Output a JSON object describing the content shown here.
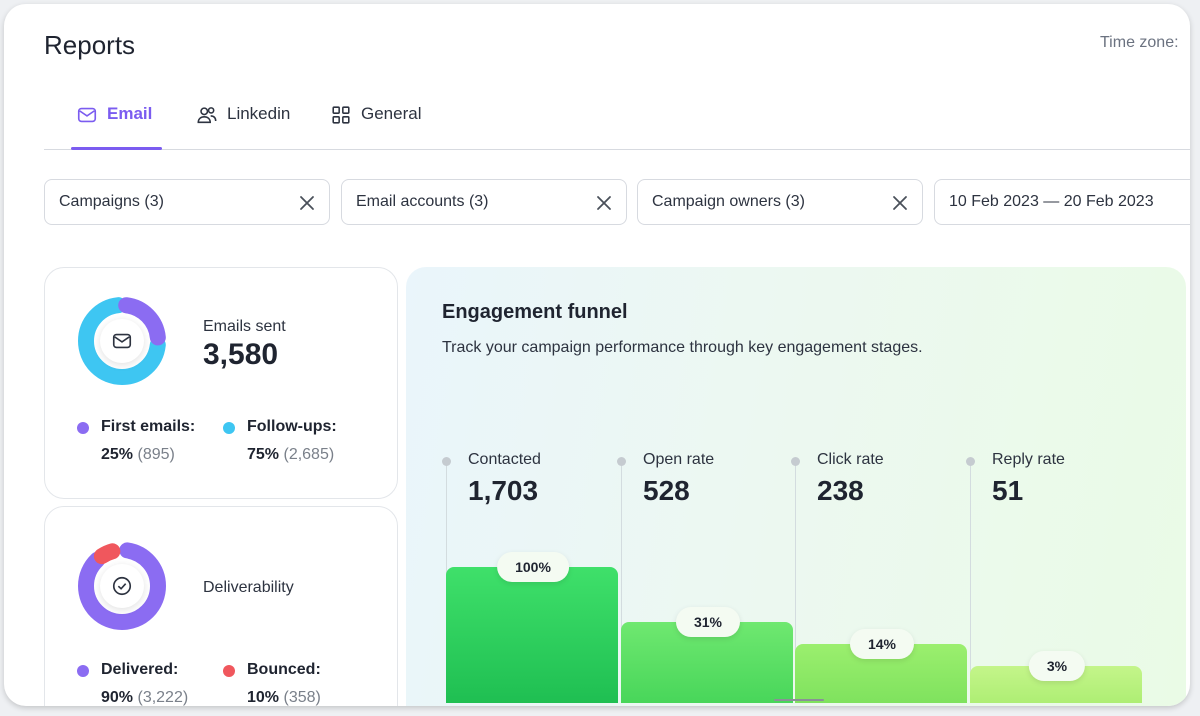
{
  "page": {
    "title": "Reports",
    "timezone_label": "Time zone:"
  },
  "tabs": [
    {
      "label": "Email",
      "icon": "mail-icon",
      "active": true
    },
    {
      "label": "Linkedin",
      "icon": "people-icon",
      "active": false
    },
    {
      "label": "General",
      "icon": "grid-icon",
      "active": false
    }
  ],
  "filters": {
    "campaigns": "Campaigns (3)",
    "email_accounts": "Email accounts (3)",
    "campaign_owners": "Campaign owners (3)",
    "date_range": "10 Feb 2023 — 20 Feb 2023"
  },
  "emails_sent": {
    "label": "Emails sent",
    "value": "3,580",
    "first": {
      "label": "First emails:",
      "pct": "25%",
      "count": "(895)",
      "color": "#8b6cf2",
      "fraction": 0.25
    },
    "followups": {
      "label": "Follow-ups:",
      "pct": "75%",
      "count": "(2,685)",
      "color": "#3ec6f2",
      "fraction": 0.75
    }
  },
  "deliverability": {
    "label": "Deliverability",
    "delivered": {
      "label": "Delivered:",
      "pct": "90%",
      "count": "(3,222)",
      "color": "#8b6cf2",
      "fraction": 0.9
    },
    "bounced": {
      "label": "Bounced:",
      "pct": "10%",
      "count": "(358)",
      "color": "#f0575d",
      "fraction": 0.1
    }
  },
  "funnel": {
    "title": "Engagement funnel",
    "subtitle": "Track your campaign performance through key engagement stages.",
    "stages": [
      {
        "label": "Contacted",
        "value": "1,703",
        "pct": "100%",
        "level": 1.0,
        "color_top": "#3fe06a",
        "color_bottom": "#1fbf52"
      },
      {
        "label": "Open rate",
        "value": "528",
        "pct": "31%",
        "level": 0.31,
        "color_top": "#6fe870",
        "color_bottom": "#48d65a"
      },
      {
        "label": "Click rate",
        "value": "238",
        "pct": "14%",
        "level": 0.14,
        "color_top": "#9bef6e",
        "color_bottom": "#7fe25e"
      },
      {
        "label": "Reply rate",
        "value": "51",
        "pct": "3%",
        "level": 0.03,
        "color_top": "#c4f58a",
        "color_bottom": "#aeee74"
      }
    ]
  }
}
